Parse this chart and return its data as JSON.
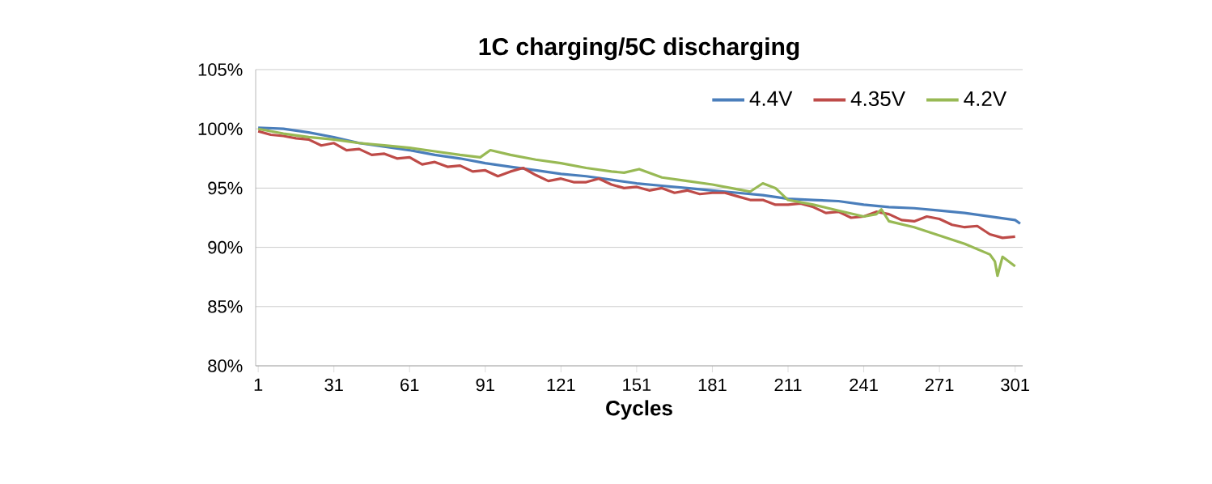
{
  "chart_data": {
    "type": "line",
    "title": "1C charging/5C discharging",
    "xlabel": "Cycles",
    "xlim": [
      0,
      304
    ],
    "xticks": [
      1,
      31,
      61,
      91,
      121,
      151,
      181,
      211,
      241,
      271,
      301
    ],
    "ylim": [
      80,
      105
    ],
    "yticks": [
      {
        "value": 80,
        "label": "80%"
      },
      {
        "value": 85,
        "label": "85%"
      },
      {
        "value": 90,
        "label": "90%"
      },
      {
        "value": 95,
        "label": "95%"
      },
      {
        "value": 100,
        "label": "100%"
      },
      {
        "value": 105,
        "label": "105%"
      }
    ],
    "grid": "y",
    "legend": "top right",
    "marker": "none",
    "line_style": "solid",
    "series": [
      {
        "name": "4.4V",
        "color": "#4a7ebb",
        "x": [
          1,
          11,
          21,
          31,
          41,
          51,
          61,
          71,
          81,
          91,
          101,
          111,
          121,
          131,
          141,
          151,
          161,
          171,
          181,
          191,
          201,
          211,
          221,
          231,
          241,
          251,
          261,
          271,
          281,
          291,
          301,
          303
        ],
        "values": [
          100.1,
          100,
          99.7,
          99.3,
          98.8,
          98.5,
          98.2,
          97.8,
          97.5,
          97.1,
          96.8,
          96.5,
          96.2,
          96,
          95.7,
          95.4,
          95.2,
          95,
          94.8,
          94.6,
          94.4,
          94.1,
          94,
          93.9,
          93.6,
          93.4,
          93.3,
          93.1,
          92.9,
          92.6,
          92.3,
          92
        ]
      },
      {
        "name": "4.35V",
        "color": "#be4b48",
        "x": [
          1,
          6,
          11,
          16,
          21,
          26,
          31,
          36,
          41,
          46,
          51,
          56,
          61,
          66,
          71,
          76,
          81,
          86,
          91,
          96,
          101,
          106,
          111,
          116,
          121,
          126,
          131,
          136,
          141,
          146,
          151,
          156,
          161,
          166,
          171,
          176,
          181,
          186,
          191,
          196,
          201,
          206,
          211,
          216,
          221,
          226,
          231,
          236,
          241,
          246,
          251,
          256,
          261,
          266,
          271,
          276,
          281,
          286,
          291,
          296,
          301
        ],
        "values": [
          99.8,
          99.5,
          99.4,
          99.2,
          99.1,
          98.6,
          98.8,
          98.2,
          98.3,
          97.8,
          97.9,
          97.5,
          97.6,
          97.0,
          97.2,
          96.8,
          96.9,
          96.4,
          96.5,
          96.0,
          96.4,
          96.7,
          96.1,
          95.6,
          95.8,
          95.5,
          95.5,
          95.8,
          95.3,
          95.0,
          95.1,
          94.8,
          95.0,
          94.6,
          94.8,
          94.5,
          94.6,
          94.6,
          94.3,
          94.0,
          94.0,
          93.6,
          93.6,
          93.7,
          93.4,
          92.9,
          93.0,
          92.5,
          92.6,
          93.0,
          92.8,
          92.3,
          92.2,
          92.6,
          92.4,
          91.9,
          91.7,
          91.8,
          91.1,
          90.8,
          90.9
        ]
      },
      {
        "name": "4.2V",
        "color": "#98b954",
        "x": [
          1,
          11,
          21,
          31,
          41,
          51,
          61,
          71,
          81,
          89,
          93,
          101,
          111,
          121,
          131,
          141,
          146,
          152,
          161,
          171,
          181,
          191,
          196,
          201,
          206,
          211,
          221,
          231,
          241,
          246,
          248,
          251,
          261,
          271,
          281,
          291,
          293,
          294,
          296,
          301
        ],
        "values": [
          100,
          99.6,
          99.3,
          99.1,
          98.8,
          98.6,
          98.4,
          98.1,
          97.8,
          97.6,
          98.2,
          97.8,
          97.4,
          97.1,
          96.7,
          96.4,
          96.3,
          96.6,
          95.9,
          95.6,
          95.3,
          94.9,
          94.7,
          95.4,
          95.0,
          94.0,
          93.6,
          93.1,
          92.6,
          92.8,
          93.2,
          92.2,
          91.7,
          91.0,
          90.3,
          89.4,
          88.8,
          87.6,
          89.2,
          88.4
        ]
      }
    ]
  }
}
